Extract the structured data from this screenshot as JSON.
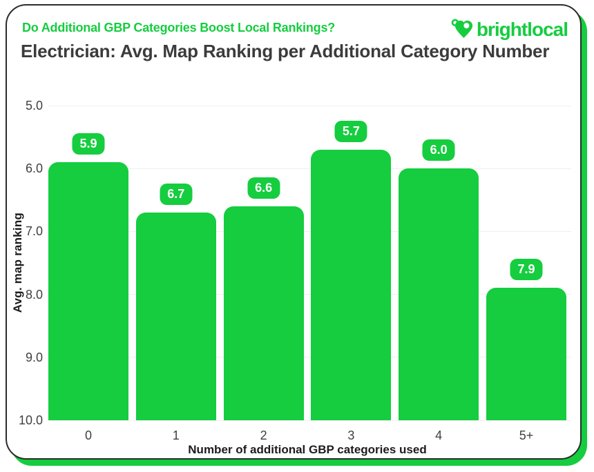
{
  "header": {
    "question": "Do Additional GBP Categories Boost Local Rankings?",
    "logo_text": "brightlocal"
  },
  "colors": {
    "brand_green": "#15cd3f",
    "title_text": "#3b3b3b",
    "axis_text": "#3f3f3f",
    "gridline": "#efefef",
    "card_border": "#2b2b2b",
    "badge_text": "#ffffff"
  },
  "chart_data": {
    "type": "bar",
    "title": "Electrician: Avg. Map Ranking per Additional Category Number",
    "categories": [
      "0",
      "1",
      "2",
      "3",
      "4",
      "5+"
    ],
    "values": [
      5.9,
      6.7,
      6.6,
      5.7,
      6.0,
      7.9
    ],
    "value_labels": [
      "5.9",
      "6.7",
      "6.6",
      "5.7",
      "6.0",
      "7.9"
    ],
    "xlabel": "Number of additional GBP categories used",
    "ylabel": "Avg. map ranking",
    "y_ticks": [
      "5.0",
      "6.0",
      "7.0",
      "8.0",
      "9.0",
      "10.0"
    ],
    "ylim": [
      5.0,
      10.0
    ],
    "y_axis_reversed": true,
    "bar_color": "#15cd3f",
    "grid": "horizontal",
    "legend": "none",
    "value_label_style": "green rounded badge, white bold text, above each bar"
  }
}
